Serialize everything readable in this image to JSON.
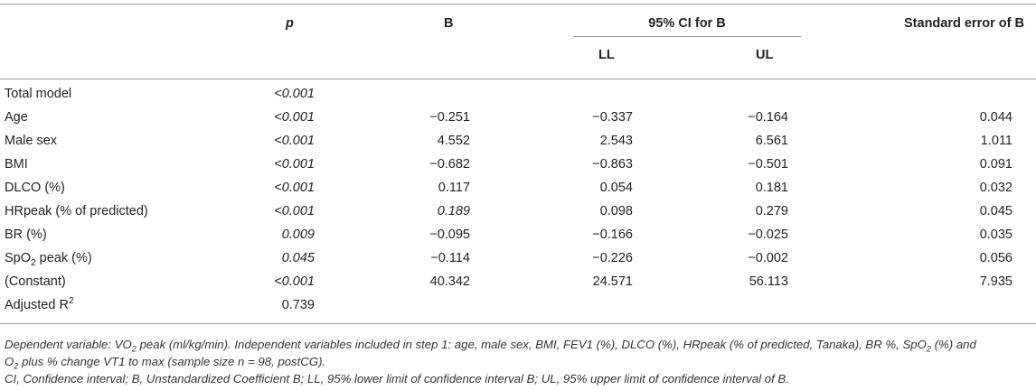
{
  "table": {
    "headers": {
      "p": "p",
      "b": "B",
      "ci": "95% CI for B",
      "ll": "LL",
      "ul": "UL",
      "se": "Standard error of B"
    },
    "rows": [
      {
        "label": "Total model",
        "p": "<0.001",
        "b": "",
        "ll": "",
        "ul": "",
        "se": ""
      },
      {
        "label": "Age",
        "p": "<0.001",
        "b": "−0.251",
        "ll": "−0.337",
        "ul": "−0.164",
        "se": "0.044"
      },
      {
        "label": "Male sex",
        "p": "<0.001",
        "b": "4.552",
        "ll": "2.543",
        "ul": "6.561",
        "se": "1.011"
      },
      {
        "label": "BMI",
        "p": "<0.001",
        "b": "−0.682",
        "ll": "−0.863",
        "ul": "−0.501",
        "se": "0.091"
      },
      {
        "label": "DLCO (%)",
        "p": "<0.001",
        "b": "0.117",
        "ll": "0.054",
        "ul": "0.181",
        "se": "0.032"
      },
      {
        "label": "HRpeak (% of predicted)",
        "p": "<0.001",
        "b": "0.189",
        "ll": "0.098",
        "ul": "0.279",
        "se": "0.045"
      },
      {
        "label": "BR (%)",
        "p": "0.009",
        "b": "−0.095",
        "ll": "−0.166",
        "ul": "−0.025",
        "se": "0.035"
      },
      {
        "label_pre": "SpO",
        "label_sub": "2",
        "label_post": " peak (%)",
        "p": "0.045",
        "b": "−0.114",
        "ll": "−0.226",
        "ul": "−0.002",
        "se": "0.056"
      },
      {
        "label": "(Constant)",
        "p": "<0.001",
        "b": "40.342",
        "ll": "24.571",
        "ul": "56.113",
        "se": "7.935"
      },
      {
        "label_pre": "Adjusted R",
        "label_sup": "2",
        "p": "0.739",
        "b": "",
        "ll": "",
        "ul": "",
        "se": ""
      }
    ]
  },
  "footnote": {
    "line1_a": "Dependent variable: VO",
    "line1_sub": "2",
    "line1_b": " peak (ml/kg/min). Independent variables included in step 1: age, male sex, BMI, FEV1 (%), DLCO (%), HRpeak (% of predicted, Tanaka), BR %, SpO",
    "line1_sub2": "2",
    "line1_c": " (%) and",
    "line2_a": "O",
    "line2_sub": "2",
    "line2_b": " plus % change VT1 to max (sample size n = 98, postCG).",
    "line3": "CI, Confidence interval; B, Unstandardized Coefficient B; LL, 95% lower limit of confidence interval B; UL, 95% upper limit of confidence interval of B."
  }
}
